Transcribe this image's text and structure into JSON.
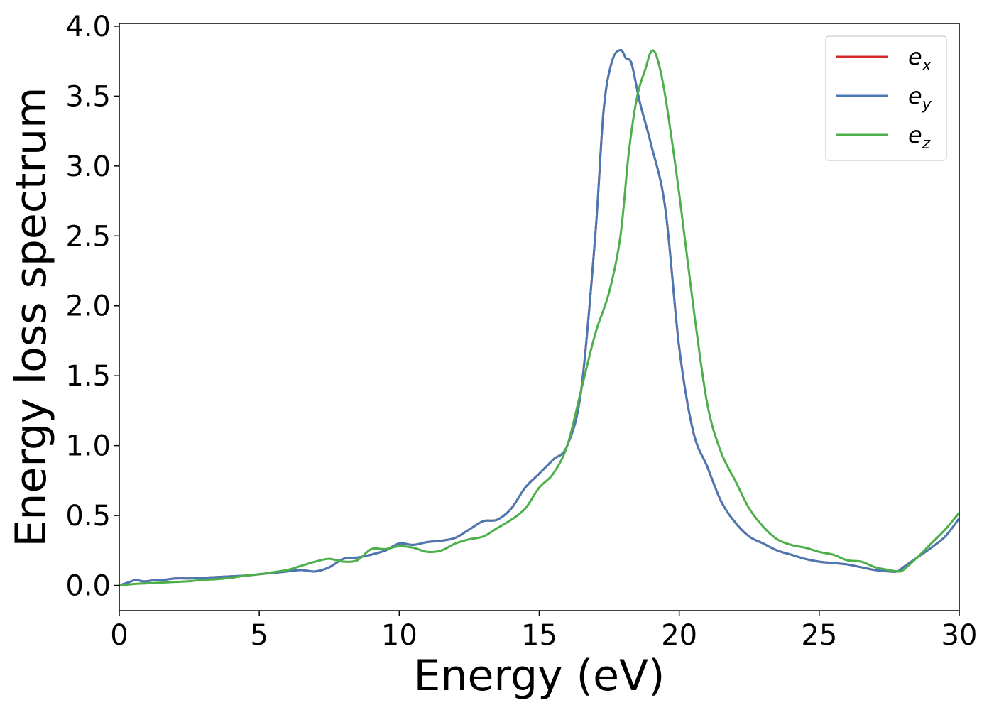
{
  "chart_data": {
    "type": "line",
    "title": "",
    "xlabel": "Energy (eV)",
    "ylabel": "Energy loss spectrum",
    "xlim": [
      0,
      30
    ],
    "ylim": [
      -0.18,
      4.02
    ],
    "xticks": [
      0,
      5,
      10,
      15,
      20,
      25,
      30
    ],
    "xtick_labels": [
      "0",
      "5",
      "10",
      "15",
      "20",
      "25",
      "30"
    ],
    "yticks": [
      0.0,
      0.5,
      1.0,
      1.5,
      2.0,
      2.5,
      3.0,
      3.5,
      4.0
    ],
    "ytick_labels": [
      "0.0",
      "0.5",
      "1.0",
      "1.5",
      "2.0",
      "2.5",
      "3.0",
      "3.5",
      "4.0"
    ],
    "grid": false,
    "legend_position": "top-right",
    "series": [
      {
        "name": "e",
        "subscript": "x",
        "color": "#d62728",
        "x": [
          0,
          0.3,
          0.6,
          0.8,
          1.0,
          1.3,
          1.6,
          2.0,
          2.5,
          3.0,
          3.5,
          4.0,
          4.5,
          5.0,
          5.5,
          6.0,
          6.5,
          7.0,
          7.5,
          8.0,
          8.5,
          9.0,
          9.5,
          10.0,
          10.5,
          11.0,
          11.5,
          12.0,
          12.5,
          13.0,
          13.5,
          14.0,
          14.5,
          15.0,
          15.5,
          16.0,
          16.5,
          17.0,
          17.3,
          17.6,
          17.9,
          18.1,
          18.3,
          18.6,
          19.0,
          19.5,
          20.0,
          20.5,
          21.0,
          21.5,
          22.0,
          22.5,
          23.0,
          23.5,
          24.0,
          24.5,
          25.0,
          25.5,
          26.0,
          26.5,
          27.0,
          27.5,
          27.8,
          28.0,
          28.5,
          29.0,
          29.5,
          30.0
        ],
        "y": [
          0.0,
          0.02,
          0.04,
          0.03,
          0.03,
          0.04,
          0.04,
          0.05,
          0.05,
          0.055,
          0.06,
          0.065,
          0.07,
          0.08,
          0.09,
          0.1,
          0.11,
          0.1,
          0.13,
          0.19,
          0.2,
          0.22,
          0.25,
          0.3,
          0.29,
          0.31,
          0.32,
          0.34,
          0.4,
          0.46,
          0.47,
          0.55,
          0.7,
          0.8,
          0.9,
          1.0,
          1.4,
          2.5,
          3.4,
          3.75,
          3.83,
          3.77,
          3.73,
          3.45,
          3.15,
          2.7,
          1.7,
          1.1,
          0.85,
          0.6,
          0.45,
          0.35,
          0.3,
          0.25,
          0.22,
          0.19,
          0.17,
          0.16,
          0.15,
          0.13,
          0.11,
          0.1,
          0.1,
          0.13,
          0.2,
          0.27,
          0.35,
          0.48
        ]
      },
      {
        "name": "e",
        "subscript": "y",
        "color": "#4a78b5",
        "x": [
          0,
          0.3,
          0.6,
          0.8,
          1.0,
          1.3,
          1.6,
          2.0,
          2.5,
          3.0,
          3.5,
          4.0,
          4.5,
          5.0,
          5.5,
          6.0,
          6.5,
          7.0,
          7.5,
          8.0,
          8.5,
          9.0,
          9.5,
          10.0,
          10.5,
          11.0,
          11.5,
          12.0,
          12.5,
          13.0,
          13.5,
          14.0,
          14.5,
          15.0,
          15.5,
          16.0,
          16.5,
          17.0,
          17.3,
          17.6,
          17.9,
          18.1,
          18.3,
          18.6,
          19.0,
          19.5,
          20.0,
          20.5,
          21.0,
          21.5,
          22.0,
          22.5,
          23.0,
          23.5,
          24.0,
          24.5,
          25.0,
          25.5,
          26.0,
          26.5,
          27.0,
          27.5,
          27.8,
          28.0,
          28.5,
          29.0,
          29.5,
          30.0
        ],
        "y": [
          0.0,
          0.02,
          0.04,
          0.03,
          0.03,
          0.04,
          0.04,
          0.05,
          0.05,
          0.055,
          0.06,
          0.065,
          0.07,
          0.08,
          0.09,
          0.1,
          0.11,
          0.1,
          0.13,
          0.19,
          0.2,
          0.22,
          0.25,
          0.3,
          0.29,
          0.31,
          0.32,
          0.34,
          0.4,
          0.46,
          0.47,
          0.55,
          0.7,
          0.8,
          0.9,
          1.0,
          1.4,
          2.5,
          3.4,
          3.75,
          3.83,
          3.77,
          3.73,
          3.45,
          3.15,
          2.7,
          1.7,
          1.1,
          0.85,
          0.6,
          0.45,
          0.35,
          0.3,
          0.25,
          0.22,
          0.19,
          0.17,
          0.16,
          0.15,
          0.13,
          0.11,
          0.1,
          0.1,
          0.13,
          0.2,
          0.27,
          0.35,
          0.48
        ]
      },
      {
        "name": "e",
        "subscript": "z",
        "color": "#4daf4a",
        "x": [
          0,
          0.5,
          1.0,
          1.5,
          2.0,
          2.5,
          3.0,
          3.5,
          4.0,
          4.5,
          5.0,
          5.5,
          6.0,
          6.5,
          7.0,
          7.5,
          8.0,
          8.5,
          9.0,
          9.5,
          10.0,
          10.5,
          11.0,
          11.5,
          12.0,
          12.5,
          13.0,
          13.5,
          14.0,
          14.5,
          15.0,
          15.5,
          16.0,
          16.5,
          17.0,
          17.5,
          17.9,
          18.2,
          18.5,
          18.8,
          19.0,
          19.2,
          19.5,
          20.0,
          20.5,
          21.0,
          21.5,
          22.0,
          22.5,
          23.0,
          23.5,
          24.0,
          24.5,
          25.0,
          25.5,
          26.0,
          26.5,
          27.0,
          27.5,
          27.8,
          28.0,
          28.5,
          29.0,
          29.5,
          30.0
        ],
        "y": [
          0.0,
          0.01,
          0.015,
          0.02,
          0.025,
          0.03,
          0.04,
          0.045,
          0.055,
          0.07,
          0.08,
          0.095,
          0.11,
          0.14,
          0.17,
          0.19,
          0.17,
          0.18,
          0.26,
          0.26,
          0.28,
          0.27,
          0.24,
          0.25,
          0.3,
          0.33,
          0.35,
          0.41,
          0.47,
          0.55,
          0.7,
          0.8,
          1.0,
          1.4,
          1.8,
          2.1,
          2.5,
          3.1,
          3.5,
          3.7,
          3.82,
          3.78,
          3.5,
          2.8,
          2.0,
          1.3,
          0.95,
          0.75,
          0.55,
          0.42,
          0.33,
          0.29,
          0.27,
          0.24,
          0.22,
          0.18,
          0.17,
          0.13,
          0.11,
          0.1,
          0.11,
          0.2,
          0.3,
          0.4,
          0.52
        ]
      }
    ]
  }
}
